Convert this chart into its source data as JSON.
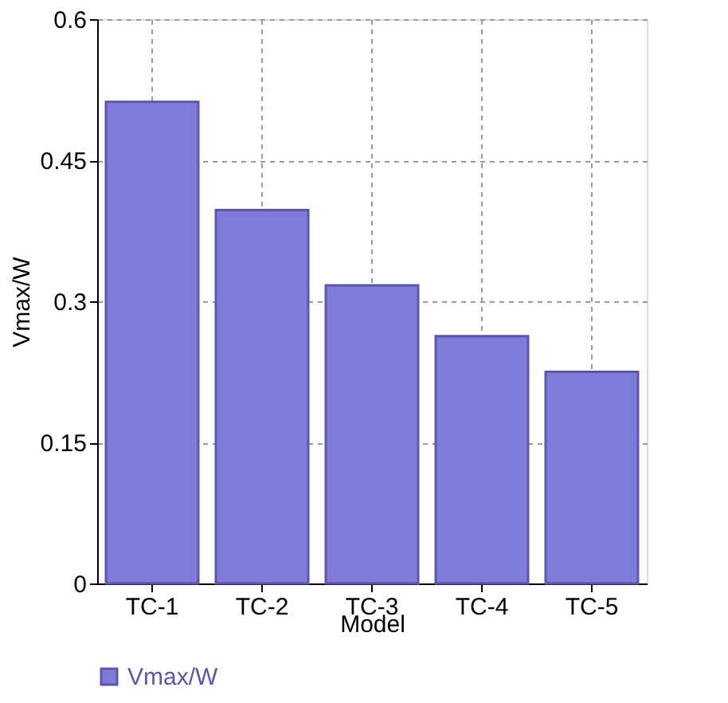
{
  "chart_data": {
    "type": "bar",
    "xlabel": "Model",
    "ylabel": "Vmax/W",
    "categories": [
      "TC-1",
      "TC-2",
      "TC-3",
      "TC-4",
      "TC-5"
    ],
    "series": [
      {
        "name": "Vmax/W",
        "color": "#7f7bd8",
        "values": [
          0.512,
          0.397,
          0.317,
          0.263,
          0.225
        ]
      }
    ],
    "ylim": [
      0,
      0.6
    ],
    "yticks": [
      0,
      0.15,
      0.3,
      0.45,
      0.6
    ],
    "grid": true,
    "legend": "bottom"
  }
}
